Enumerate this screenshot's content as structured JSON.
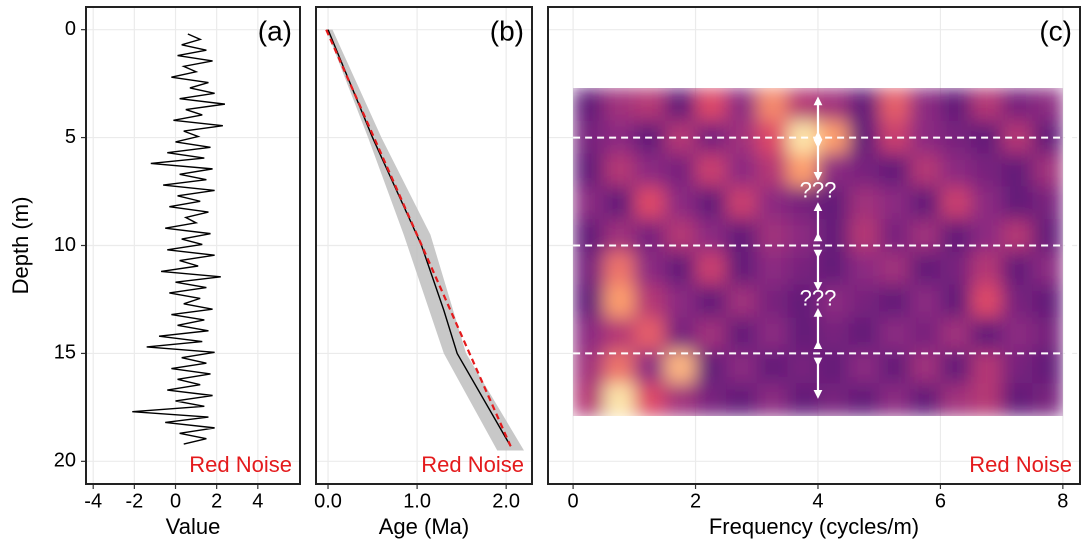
{
  "chart_data": [
    {
      "type": "line",
      "panel_label": "(a)",
      "note": "Red Noise",
      "note_color": "#e41a1c",
      "xlabel": "Value",
      "ylabel": "Depth (m)",
      "show_ytick_labels": true,
      "grid": true,
      "xlim": [
        -4.35,
        6.05
      ],
      "xticks": [
        -4,
        -2,
        0,
        2,
        4
      ],
      "ylim": [
        -1.05,
        21.05
      ],
      "yticks": [
        0,
        5,
        10,
        15,
        20
      ],
      "series": [
        {
          "color": "#000000",
          "depth": [
            0.2,
            0.45,
            0.7,
            0.95,
            1.2,
            1.45,
            1.7,
            1.95,
            2.2,
            2.45,
            2.7,
            2.95,
            3.2,
            3.45,
            3.7,
            3.95,
            4.2,
            4.45,
            4.7,
            4.95,
            5.2,
            5.45,
            5.7,
            5.95,
            6.2,
            6.45,
            6.7,
            6.95,
            7.2,
            7.45,
            7.7,
            7.95,
            8.2,
            8.45,
            8.7,
            8.95,
            9.2,
            9.45,
            9.7,
            9.95,
            10.2,
            10.45,
            10.7,
            10.95,
            11.2,
            11.45,
            11.7,
            11.95,
            12.2,
            12.45,
            12.7,
            12.95,
            13.2,
            13.45,
            13.7,
            13.95,
            14.2,
            14.45,
            14.7,
            14.95,
            15.2,
            15.45,
            15.7,
            15.95,
            16.2,
            16.45,
            16.7,
            16.95,
            17.2,
            17.45,
            17.7,
            17.95,
            18.2,
            18.45,
            18.7,
            18.95,
            19.2
          ],
          "values": [
            0.6,
            1.2,
            0.3,
            1.5,
            0.1,
            1.8,
            0.4,
            1.0,
            -0.2,
            1.6,
            0.7,
            1.9,
            0.2,
            2.4,
            0.5,
            1.3,
            -0.1,
            2.3,
            0.4,
            1.1,
            0.0,
            1.7,
            -0.4,
            1.4,
            -1.2,
            1.8,
            0.2,
            1.5,
            -0.6,
            1.9,
            0.1,
            1.2,
            -0.3,
            1.6,
            0.5,
            1.0,
            -0.5,
            1.7,
            0.3,
            1.3,
            -0.4,
            1.9,
            0.2,
            1.1,
            -0.7,
            2.2,
            0.0,
            1.5,
            -0.3,
            1.2,
            0.4,
            1.8,
            -0.2,
            1.4,
            0.1,
            1.6,
            -0.8,
            1.3,
            -1.4,
            1.9,
            0.3,
            1.5,
            -0.2,
            1.7,
            0.1,
            1.2,
            -0.4,
            1.8,
            0.0,
            1.4,
            -2.1,
            1.6,
            -0.5,
            1.9,
            0.2,
            1.5,
            0.4
          ]
        }
      ]
    },
    {
      "type": "line",
      "panel_label": "(b)",
      "note": "Red Noise",
      "note_color": "#e41a1c",
      "xlabel": "Age (Ma)",
      "show_ytick_labels": false,
      "grid": true,
      "xlim": [
        -0.135,
        2.29
      ],
      "xticks": [
        {
          "value": 0,
          "label": "0.0"
        },
        {
          "value": 1,
          "label": "1.0"
        },
        {
          "value": 2,
          "label": "2.0"
        }
      ],
      "ylim": [
        -1.05,
        21.05
      ],
      "yticks": [
        0,
        5,
        10,
        15,
        20
      ],
      "band": {
        "color": "#bebebe",
        "depth": [
          0,
          5,
          9.5,
          15,
          19.5
        ],
        "lower": [
          -0.02,
          0.45,
          0.85,
          1.3,
          1.9
        ],
        "upper": [
          0.05,
          0.6,
          1.15,
          1.55,
          2.2
        ]
      },
      "series": [
        {
          "color": "#000000",
          "depth": [
            0,
            5,
            10,
            13,
            15,
            19.3
          ],
          "values": [
            0.0,
            0.5,
            1.05,
            1.3,
            1.45,
            2.05
          ]
        },
        {
          "color": "#e41a1c",
          "dashed": true,
          "depth": [
            0,
            19.3
          ],
          "values": [
            -0.02,
            2.05
          ]
        }
      ]
    },
    {
      "type": "heatmap",
      "panel_label": "(c)",
      "note": "Red Noise",
      "note_color": "#e41a1c",
      "xlabel": "Frequency (cycles/m)",
      "show_ytick_labels": false,
      "grid": true,
      "xlim": [
        -0.41,
        8.28
      ],
      "xticks": [
        0,
        2,
        4,
        6,
        8
      ],
      "ylim": [
        -1.05,
        21.05
      ],
      "yticks": [
        0,
        5,
        10,
        15,
        20
      ],
      "x_range": [
        0,
        8
      ],
      "y_range": [
        2.7,
        17.9
      ],
      "colormap": [
        "#000004",
        "#3b0f70",
        "#8c2981",
        "#de4968",
        "#fe9f6d",
        "#fcfdbf"
      ],
      "z": [
        [
          0.3,
          0.45,
          0.5,
          0.3,
          0.6,
          0.4,
          0.75,
          0.5,
          0.45,
          0.3,
          0.65,
          0.4,
          0.3,
          0.5,
          0.35,
          0.4
        ],
        [
          0.35,
          0.4,
          0.3,
          0.5,
          0.35,
          0.45,
          0.6,
          0.95,
          0.8,
          0.3,
          0.55,
          0.4,
          0.35,
          0.3,
          0.5,
          0.3
        ],
        [
          0.3,
          0.5,
          0.4,
          0.35,
          0.55,
          0.4,
          0.5,
          0.8,
          0.4,
          0.35,
          0.3,
          0.5,
          0.4,
          0.35,
          0.3,
          0.45
        ],
        [
          0.4,
          0.3,
          0.6,
          0.4,
          0.3,
          0.55,
          0.4,
          0.35,
          0.3,
          0.45,
          0.4,
          0.3,
          0.55,
          0.4,
          0.3,
          0.35
        ],
        [
          0.3,
          0.45,
          0.35,
          0.5,
          0.4,
          0.3,
          0.45,
          0.4,
          0.3,
          0.5,
          0.35,
          0.45,
          0.3,
          0.4,
          0.5,
          0.3
        ],
        [
          0.35,
          0.7,
          0.4,
          0.3,
          0.55,
          0.3,
          0.4,
          0.35,
          0.3,
          0.4,
          0.45,
          0.3,
          0.35,
          0.5,
          0.3,
          0.4
        ],
        [
          0.3,
          0.8,
          0.5,
          0.4,
          0.3,
          0.45,
          0.35,
          0.3,
          0.4,
          0.35,
          0.3,
          0.4,
          0.3,
          0.6,
          0.35,
          0.3
        ],
        [
          0.4,
          0.5,
          0.65,
          0.35,
          0.45,
          0.3,
          0.4,
          0.3,
          0.35,
          0.3,
          0.4,
          0.35,
          0.45,
          0.3,
          0.4,
          0.35
        ],
        [
          0.45,
          0.7,
          0.4,
          0.85,
          0.3,
          0.4,
          0.3,
          0.35,
          0.3,
          0.4,
          0.3,
          0.45,
          0.3,
          0.5,
          0.35,
          0.3
        ],
        [
          0.5,
          0.95,
          0.6,
          0.45,
          0.35,
          0.3,
          0.4,
          0.3,
          0.35,
          0.3,
          0.4,
          0.3,
          0.45,
          0.5,
          0.3,
          0.35
        ]
      ],
      "hlines": [
        5,
        10,
        15
      ],
      "arrows": [
        {
          "x": 4,
          "from": 4.9,
          "to": 3.3
        },
        {
          "x": 4,
          "from": 5.3,
          "to": 6.8
        },
        {
          "x": 4,
          "from": 9.6,
          "to": 8.2
        },
        {
          "x": 4,
          "from": 10.4,
          "to": 11.9
        },
        {
          "x": 4,
          "from": 14.6,
          "to": 13.1
        },
        {
          "x": 4,
          "from": 15.4,
          "to": 16.9
        }
      ],
      "annotations": [
        {
          "text": "???",
          "x": 4,
          "y": 7.5
        },
        {
          "text": "???",
          "x": 4,
          "y": 12.5
        }
      ]
    }
  ]
}
